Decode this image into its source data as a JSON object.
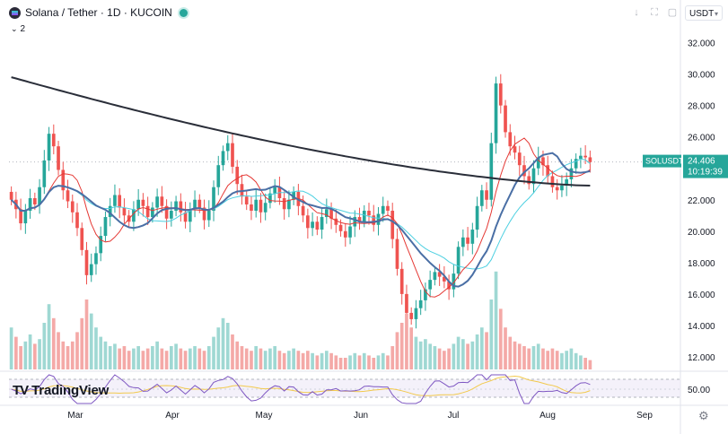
{
  "header": {
    "title": "Solana / Tether · 1D · KUCOIN",
    "indicator_count": "2",
    "currency": "USDT"
  },
  "price_label": {
    "symbol": "SOLUSDT",
    "price": "24.406",
    "countdown": "10:19:39"
  },
  "branding": "TradingView",
  "colors": {
    "up": "#26a69a",
    "down": "#ef5350",
    "ma_long": "#2a2e39",
    "ma_mid": "#4a6fa5",
    "ma_fast": "#e53935",
    "ma_cyan": "#4dd0e1",
    "rsi": "#7e57c2",
    "rsi_ma": "#f2c94c"
  },
  "chart_data": {
    "type": "candlestick",
    "y_ticks": [
      "32.000",
      "30.000",
      "28.000",
      "26.000",
      "24.000",
      "22.000",
      "20.000",
      "18.000",
      "16.000",
      "14.000",
      "12.000"
    ],
    "ylim": [
      11.2,
      33.0
    ],
    "x_ticks": [
      "Mar",
      "Apr",
      "May",
      "Jun",
      "Jul",
      "Aug",
      "Sep"
    ],
    "rsi_ticks": [
      "50.00"
    ],
    "last_price": 24.406,
    "closes": [
      22.0,
      21.4,
      20.5,
      21.3,
      22.1,
      21.7,
      22.8,
      24.5,
      26.2,
      25.4,
      23.9,
      22.6,
      21.9,
      21.2,
      20.2,
      18.8,
      17.2,
      17.9,
      18.6,
      19.7,
      20.9,
      21.6,
      22.3,
      21.5,
      21.0,
      20.6,
      21.4,
      22.0,
      21.6,
      20.9,
      21.5,
      22.2,
      21.6,
      20.8,
      21.3,
      21.9,
      21.2,
      20.6,
      21.4,
      22.0,
      21.5,
      20.7,
      21.3,
      22.8,
      24.2,
      25.1,
      25.6,
      24.1,
      23.0,
      22.2,
      21.7,
      21.3,
      22.0,
      21.2,
      21.8,
      22.4,
      22.8,
      22.1,
      21.4,
      22.0,
      22.5,
      21.6,
      21.0,
      20.2,
      20.6,
      20.1,
      20.9,
      21.4,
      20.8,
      20.4,
      20.0,
      19.6,
      20.3,
      20.9,
      20.6,
      21.3,
      21.0,
      20.4,
      21.1,
      21.6,
      21.3,
      19.5,
      17.6,
      16.0,
      14.8,
      14.4,
      15.1,
      15.6,
      16.3,
      16.9,
      17.4,
      17.1,
      16.8,
      16.3,
      17.3,
      19.0,
      19.6,
      19.2,
      20.1,
      21.6,
      22.6,
      22.0,
      25.6,
      29.4,
      28.0,
      26.3,
      25.4,
      25.0,
      24.2,
      23.5,
      23.0,
      24.0,
      24.7,
      24.2,
      23.5,
      22.8,
      22.6,
      22.9,
      23.3,
      24.0,
      24.6,
      24.8,
      24.7,
      24.4
    ],
    "volumes": [
      0.18,
      0.14,
      0.1,
      0.12,
      0.15,
      0.11,
      0.13,
      0.2,
      0.28,
      0.22,
      0.16,
      0.12,
      0.1,
      0.12,
      0.16,
      0.22,
      0.3,
      0.24,
      0.18,
      0.14,
      0.12,
      0.1,
      0.11,
      0.09,
      0.1,
      0.08,
      0.09,
      0.1,
      0.08,
      0.09,
      0.1,
      0.12,
      0.09,
      0.08,
      0.1,
      0.11,
      0.09,
      0.08,
      0.09,
      0.1,
      0.09,
      0.08,
      0.1,
      0.14,
      0.18,
      0.22,
      0.2,
      0.15,
      0.12,
      0.1,
      0.09,
      0.08,
      0.1,
      0.09,
      0.08,
      0.09,
      0.1,
      0.08,
      0.07,
      0.08,
      0.09,
      0.08,
      0.07,
      0.08,
      0.07,
      0.06,
      0.07,
      0.08,
      0.07,
      0.06,
      0.05,
      0.05,
      0.06,
      0.07,
      0.06,
      0.07,
      0.06,
      0.05,
      0.06,
      0.07,
      0.06,
      0.1,
      0.16,
      0.2,
      0.24,
      0.18,
      0.14,
      0.12,
      0.13,
      0.11,
      0.1,
      0.09,
      0.08,
      0.09,
      0.11,
      0.14,
      0.13,
      0.11,
      0.12,
      0.15,
      0.18,
      0.16,
      0.3,
      0.42,
      0.26,
      0.18,
      0.14,
      0.12,
      0.11,
      0.1,
      0.09,
      0.1,
      0.11,
      0.09,
      0.08,
      0.09,
      0.08,
      0.07,
      0.08,
      0.09,
      0.07,
      0.06,
      0.05,
      0.04
    ],
    "ma_long": {
      "start": 29.8,
      "end": 22.9
    },
    "rsi_level": 50.0
  }
}
